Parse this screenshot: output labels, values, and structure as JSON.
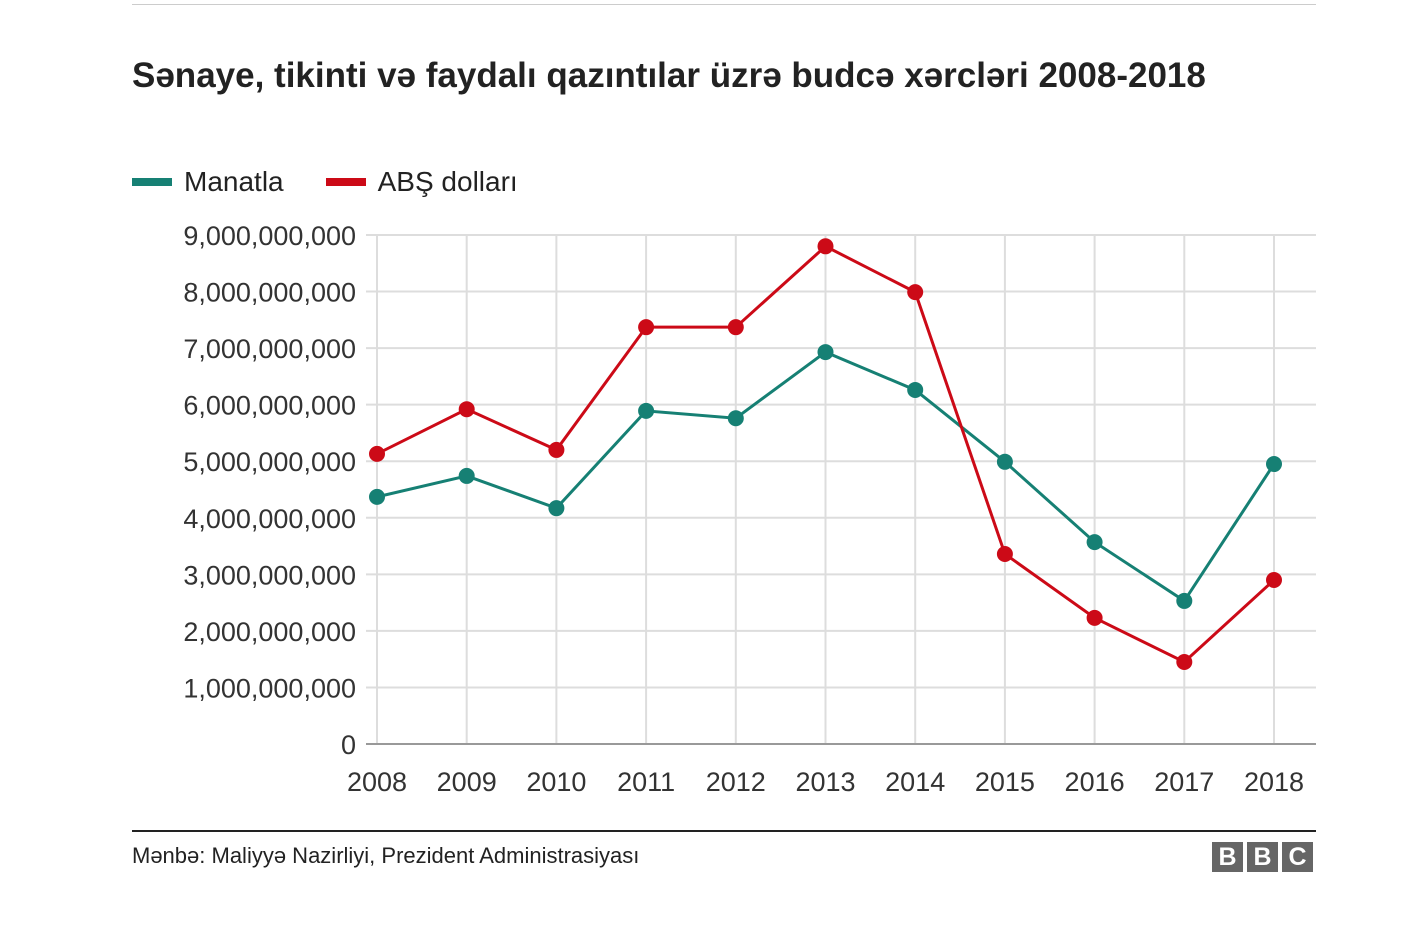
{
  "chart_data": {
    "type": "line",
    "title": "Sənaye, tikinti və faydalı qazıntılar üzrə budcə xərcləri 2008-2018",
    "x": [
      "2008",
      "2009",
      "2010",
      "2011",
      "2012",
      "2013",
      "2014",
      "2015",
      "2016",
      "2017",
      "2018"
    ],
    "y_ticks": [
      "0",
      "1,000,000,000",
      "2,000,000,000",
      "3,000,000,000",
      "4,000,000,000",
      "5,000,000,000",
      "6,000,000,000",
      "7,000,000,000",
      "8,000,000,000",
      "9,000,000,000"
    ],
    "ylim": [
      0,
      9000000000
    ],
    "grid": true,
    "legend_position": "top-left",
    "series": [
      {
        "name": "Manatla",
        "color": "#168074",
        "values": [
          4370000000,
          4740000000,
          4170000000,
          5890000000,
          5760000000,
          6930000000,
          6260000000,
          4990000000,
          3570000000,
          2530000000,
          4950000000
        ]
      },
      {
        "name": "ABŞ dolları",
        "color": "#cc0a17",
        "values": [
          5130000000,
          5920000000,
          5200000000,
          7370000000,
          7370000000,
          8800000000,
          7990000000,
          3360000000,
          2230000000,
          1450000000,
          2900000000
        ]
      }
    ]
  },
  "footer": {
    "source": "Mənbə: Maliyyə Nazirliyi, Prezident Administrasiyası",
    "logo": [
      "B",
      "B",
      "C"
    ]
  }
}
